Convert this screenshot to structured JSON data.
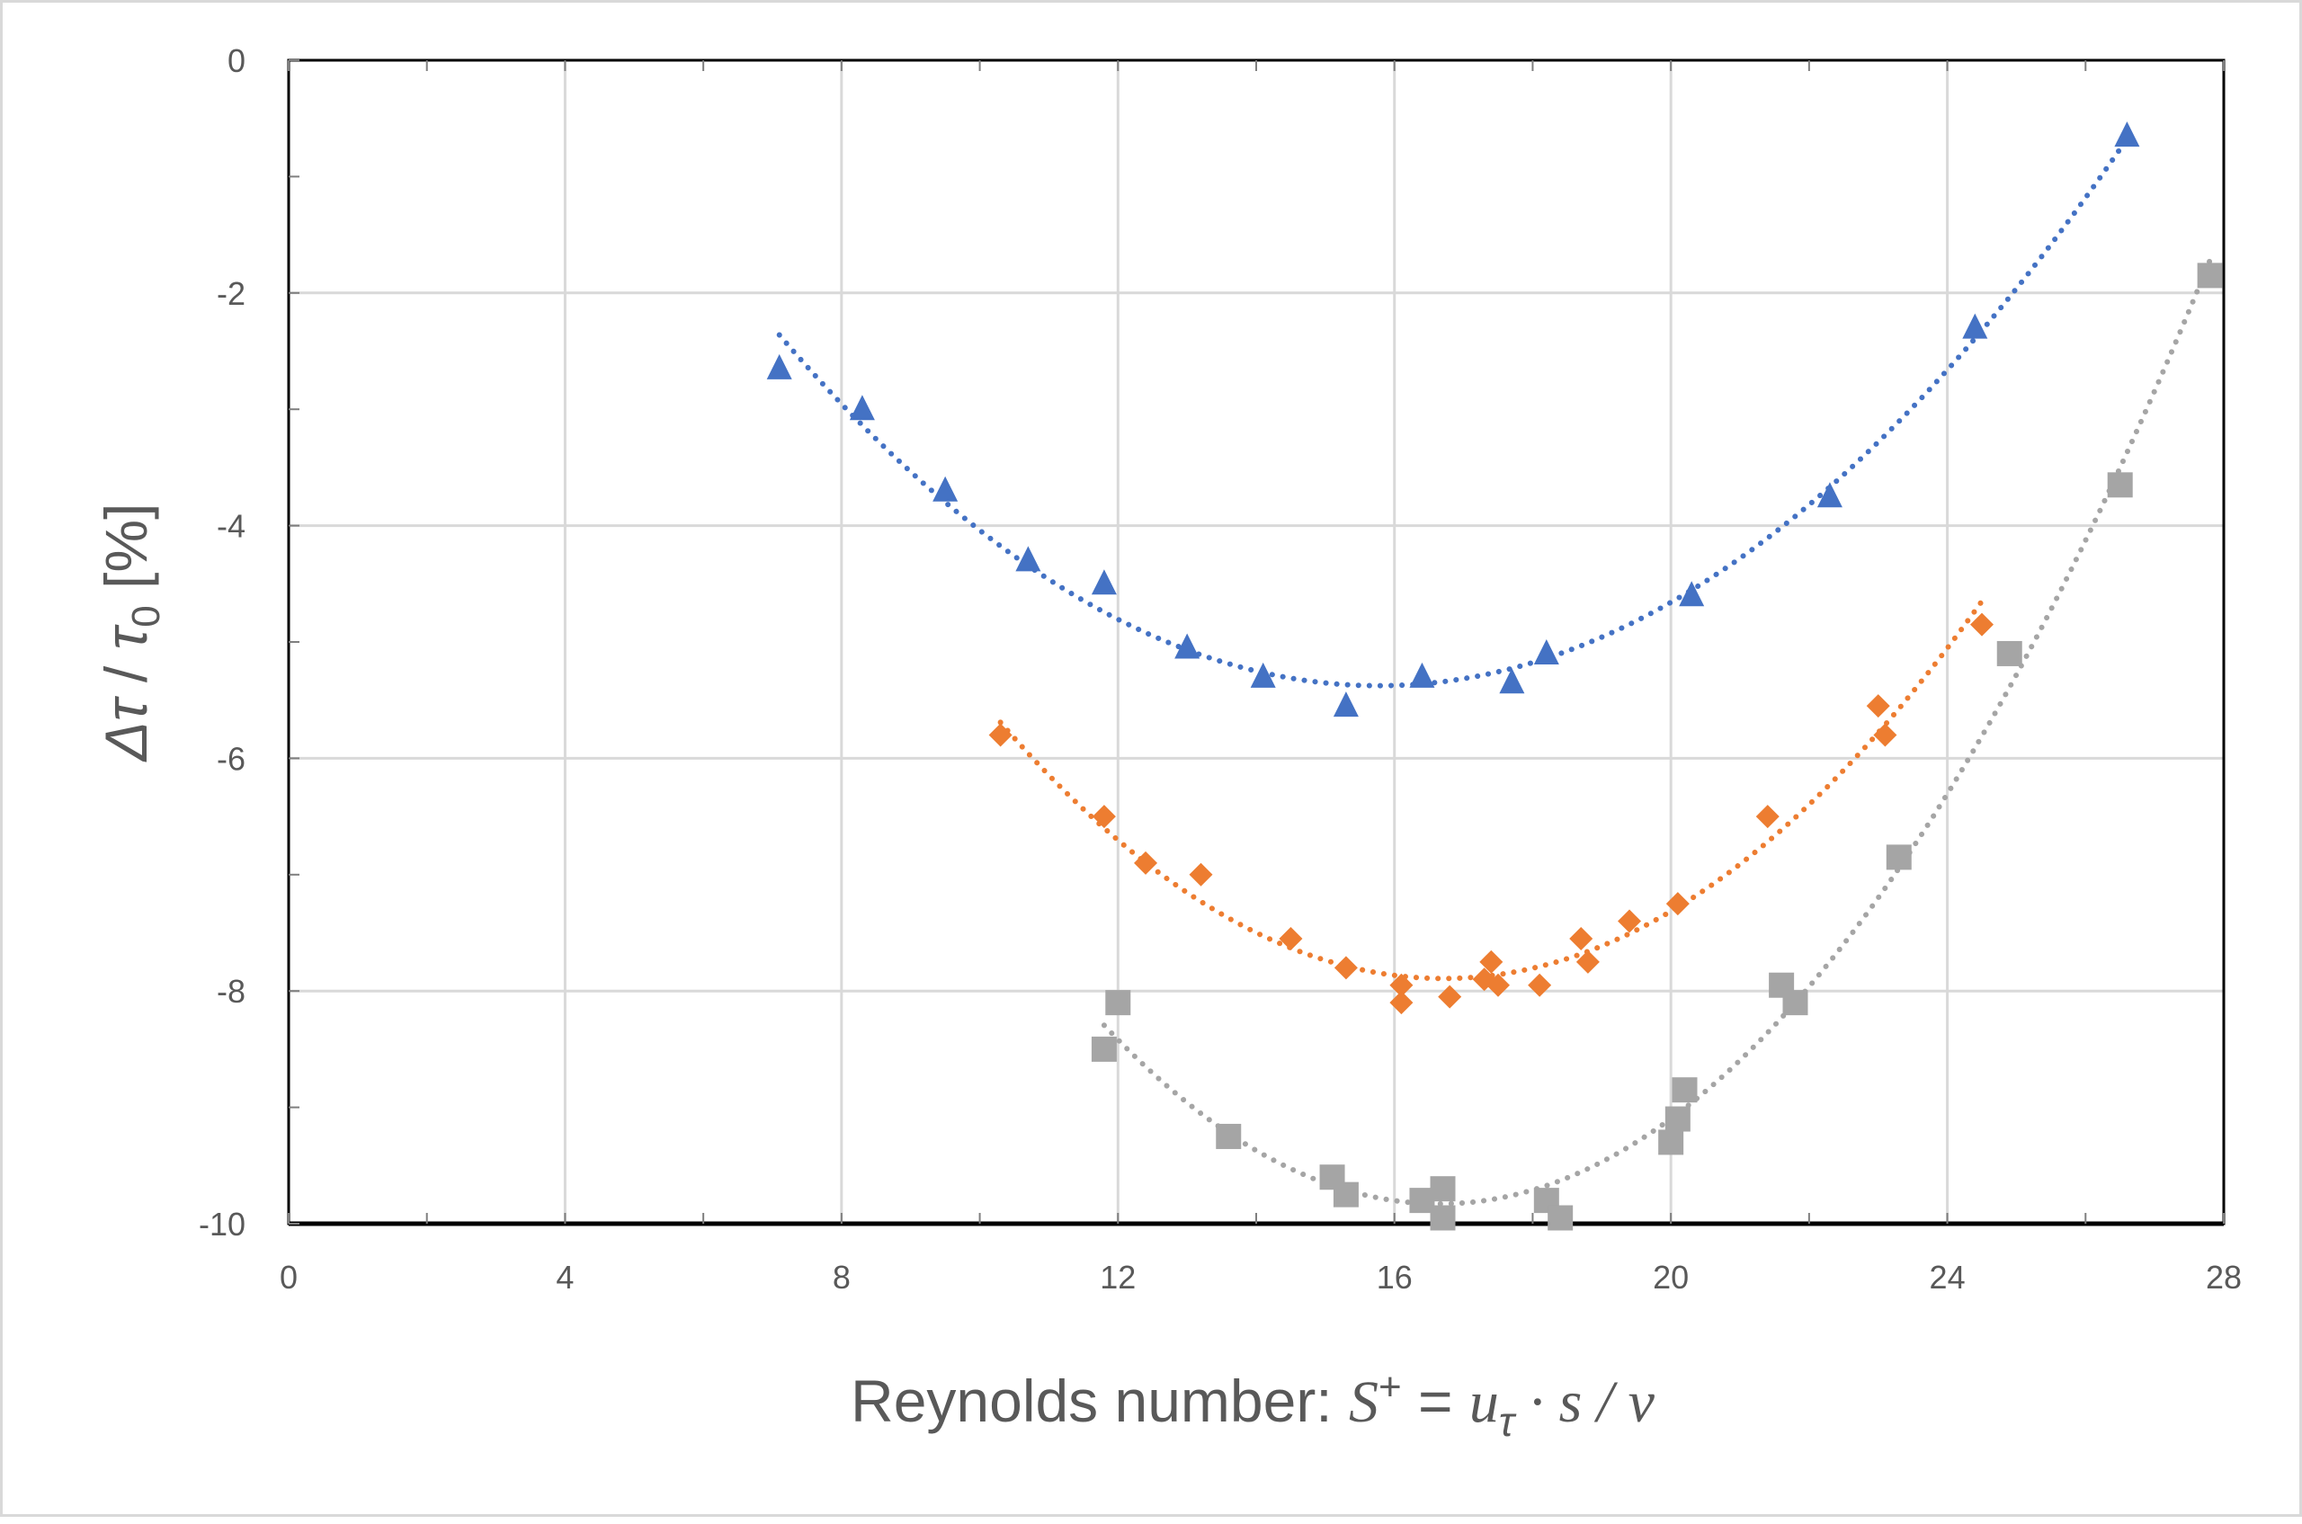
{
  "chart_data": {
    "type": "scatter",
    "title": "",
    "xlabel": {
      "prefix": "Reynolds number: ",
      "s_plus": "S",
      "plus_sup": "+",
      "equals": " = ",
      "u": "u",
      "tau_sub": "τ",
      "rest": " · s / v"
    },
    "ylabel": {
      "delta_tau": "Δτ",
      "slash": " / ",
      "tau0": "τ",
      "zero_sub": "0",
      "percent": " [%]"
    },
    "xlim": [
      0,
      28
    ],
    "ylim": [
      -10,
      0
    ],
    "x_ticks": [
      0,
      4,
      8,
      12,
      16,
      20,
      24,
      28
    ],
    "x_tick_labels": [
      "0",
      "4",
      "8",
      "12",
      "16",
      "20",
      "24",
      "28"
    ],
    "y_ticks": [
      0,
      -2,
      -4,
      -6,
      -8,
      -10
    ],
    "y_tick_labels": [
      "0",
      "-2",
      "-4",
      "-6",
      "-8",
      "-10"
    ],
    "grid": true,
    "legend": "none",
    "series": [
      {
        "marker": "triangle",
        "color": "#4472c4",
        "trendline": "polynomial (dotted)",
        "trend_x_range": [
          7.1,
          26.5
        ],
        "points": [
          [
            7.1,
            -2.65
          ],
          [
            8.3,
            -3.0
          ],
          [
            9.5,
            -3.7
          ],
          [
            10.7,
            -4.3
          ],
          [
            11.8,
            -4.5
          ],
          [
            13.0,
            -5.05
          ],
          [
            14.1,
            -5.3
          ],
          [
            15.3,
            -5.55
          ],
          [
            16.4,
            -5.3
          ],
          [
            17.7,
            -5.35
          ],
          [
            18.2,
            -5.1
          ],
          [
            20.3,
            -4.6
          ],
          [
            22.3,
            -3.75
          ],
          [
            24.4,
            -2.3
          ],
          [
            26.6,
            -0.65
          ]
        ]
      },
      {
        "marker": "diamond",
        "color": "#ed7d31",
        "trendline": "polynomial (dotted)",
        "trend_x_range": [
          10.3,
          24.5
        ],
        "points": [
          [
            10.3,
            -5.8
          ],
          [
            11.8,
            -6.5
          ],
          [
            12.4,
            -6.9
          ],
          [
            13.2,
            -7.0
          ],
          [
            14.5,
            -7.55
          ],
          [
            15.3,
            -7.8
          ],
          [
            16.1,
            -7.95
          ],
          [
            16.1,
            -8.1
          ],
          [
            16.8,
            -8.05
          ],
          [
            17.3,
            -7.9
          ],
          [
            17.4,
            -7.75
          ],
          [
            17.5,
            -7.95
          ],
          [
            18.1,
            -7.95
          ],
          [
            18.7,
            -7.55
          ],
          [
            18.8,
            -7.75
          ],
          [
            19.4,
            -7.4
          ],
          [
            20.1,
            -7.25
          ],
          [
            21.4,
            -6.5
          ],
          [
            23.0,
            -5.55
          ],
          [
            23.1,
            -5.8
          ],
          [
            24.5,
            -4.85
          ]
        ]
      },
      {
        "marker": "square",
        "color": "#a5a5a5",
        "trendline": "polynomial (dotted)",
        "trend_x_range": [
          11.8,
          27.8
        ],
        "points": [
          [
            11.8,
            -8.5
          ],
          [
            12.0,
            -8.1
          ],
          [
            13.6,
            -9.25
          ],
          [
            15.1,
            -9.6
          ],
          [
            15.3,
            -9.75
          ],
          [
            16.4,
            -9.8
          ],
          [
            16.7,
            -9.7
          ],
          [
            16.7,
            -9.95
          ],
          [
            18.2,
            -9.8
          ],
          [
            18.4,
            -9.95
          ],
          [
            20.0,
            -9.3
          ],
          [
            20.1,
            -9.1
          ],
          [
            20.2,
            -8.85
          ],
          [
            21.6,
            -7.95
          ],
          [
            21.8,
            -8.1
          ],
          [
            23.3,
            -6.85
          ],
          [
            24.9,
            -5.1
          ],
          [
            26.5,
            -3.65
          ],
          [
            27.8,
            -1.85
          ]
        ]
      }
    ]
  }
}
